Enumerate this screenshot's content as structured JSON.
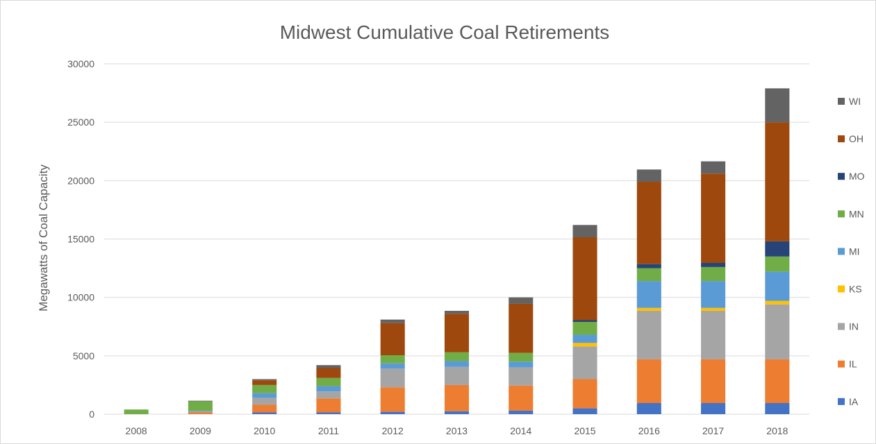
{
  "chart_data": {
    "type": "bar",
    "stacked": true,
    "title": "Midwest Cumulative Coal Retirements",
    "xlabel": "",
    "ylabel": "Megawatts of Coal Capacity",
    "ylim": [
      0,
      30000
    ],
    "yticks": [
      "0",
      "5000",
      "10000",
      "15000",
      "20000",
      "25000",
      "30000"
    ],
    "grid": true,
    "legend_position": "right",
    "categories": [
      "2008",
      "2009",
      "2010",
      "2011",
      "2012",
      "2013",
      "2014",
      "2015",
      "2016",
      "2017",
      "2018"
    ],
    "series": [
      {
        "name": "IA",
        "color": "#4472c4",
        "values": [
          0,
          0,
          150,
          150,
          200,
          250,
          300,
          500,
          950,
          950,
          950
        ]
      },
      {
        "name": "IL",
        "color": "#ed7d31",
        "values": [
          0,
          150,
          650,
          1200,
          2100,
          2250,
          2150,
          2500,
          3750,
          3750,
          3750
        ]
      },
      {
        "name": "IN",
        "color": "#a5a5a5",
        "values": [
          0,
          100,
          600,
          600,
          1600,
          1550,
          1550,
          2800,
          4150,
          4150,
          4700
        ]
      },
      {
        "name": "KS",
        "color": "#ffc000",
        "values": [
          0,
          0,
          0,
          0,
          0,
          0,
          0,
          300,
          250,
          250,
          300
        ]
      },
      {
        "name": "MI",
        "color": "#5b9bd5",
        "values": [
          0,
          50,
          400,
          450,
          450,
          500,
          500,
          700,
          2300,
          2300,
          2500
        ]
      },
      {
        "name": "MN",
        "color": "#70ad47",
        "values": [
          400,
          800,
          700,
          700,
          700,
          750,
          750,
          1100,
          1100,
          1200,
          1300
        ]
      },
      {
        "name": "MO",
        "color": "#264478",
        "values": [
          0,
          0,
          0,
          0,
          0,
          0,
          0,
          150,
          350,
          350,
          1300
        ]
      },
      {
        "name": "OH",
        "color": "#9e480e",
        "values": [
          0,
          0,
          400,
          850,
          2750,
          3300,
          4200,
          7100,
          7050,
          7650,
          10200
        ]
      },
      {
        "name": "WI",
        "color": "#636363",
        "values": [
          0,
          50,
          100,
          250,
          300,
          250,
          550,
          1050,
          1050,
          1050,
          2900
        ]
      }
    ]
  }
}
